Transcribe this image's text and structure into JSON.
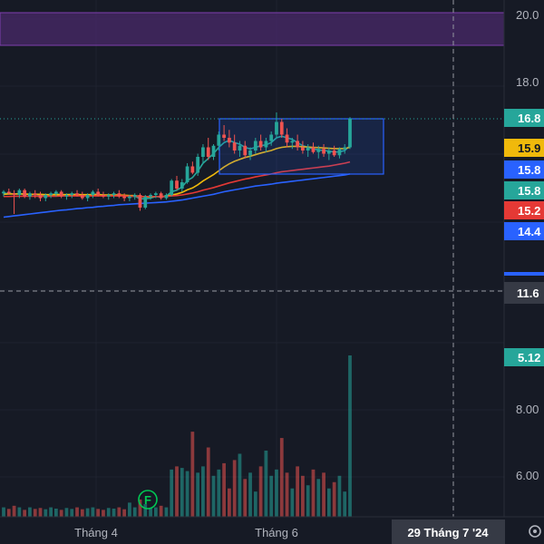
{
  "chart_data": {
    "type": "candlestick",
    "price_axis_labels": [
      "20.0",
      "18.0",
      "16.8",
      "15.9",
      "15.8",
      "15.8",
      "15.2",
      "14.4",
      "11.6",
      "5.12"
    ],
    "volume_axis_labels": [
      "8.00",
      "6.00"
    ],
    "time_labels": [
      "Tháng 4",
      "Tháng 6"
    ],
    "crosshair_time": "29 Tháng 7 '24",
    "crosshair_price": "11.6",
    "volume_last": "5.12",
    "event_marker": "F",
    "candles": [
      {
        "o": 14.45,
        "h": 14.55,
        "l": 14.35,
        "c": 14.5
      },
      {
        "o": 14.5,
        "h": 14.6,
        "l": 14.4,
        "c": 14.45
      },
      {
        "o": 14.45,
        "h": 14.55,
        "l": 13.8,
        "c": 14.4
      },
      {
        "o": 14.4,
        "h": 14.6,
        "l": 14.3,
        "c": 14.55
      },
      {
        "o": 14.55,
        "h": 14.6,
        "l": 14.3,
        "c": 14.35
      },
      {
        "o": 14.35,
        "h": 14.5,
        "l": 14.25,
        "c": 14.45
      },
      {
        "o": 14.45,
        "h": 14.55,
        "l": 14.3,
        "c": 14.4
      },
      {
        "o": 14.4,
        "h": 14.5,
        "l": 14.2,
        "c": 14.3
      },
      {
        "o": 14.3,
        "h": 14.45,
        "l": 14.2,
        "c": 14.4
      },
      {
        "o": 14.4,
        "h": 14.5,
        "l": 14.3,
        "c": 14.45
      },
      {
        "o": 14.45,
        "h": 14.55,
        "l": 14.35,
        "c": 14.5
      },
      {
        "o": 14.5,
        "h": 14.55,
        "l": 14.3,
        "c": 14.35
      },
      {
        "o": 14.35,
        "h": 14.45,
        "l": 14.25,
        "c": 14.4
      },
      {
        "o": 14.4,
        "h": 14.5,
        "l": 14.3,
        "c": 14.45
      },
      {
        "o": 14.45,
        "h": 14.55,
        "l": 14.35,
        "c": 14.4
      },
      {
        "o": 14.4,
        "h": 14.5,
        "l": 14.25,
        "c": 14.3
      },
      {
        "o": 14.3,
        "h": 14.45,
        "l": 14.2,
        "c": 14.4
      },
      {
        "o": 14.4,
        "h": 14.55,
        "l": 14.3,
        "c": 14.5
      },
      {
        "o": 14.5,
        "h": 14.6,
        "l": 14.35,
        "c": 14.4
      },
      {
        "o": 14.4,
        "h": 14.5,
        "l": 14.3,
        "c": 14.35
      },
      {
        "o": 14.35,
        "h": 14.45,
        "l": 14.25,
        "c": 14.4
      },
      {
        "o": 14.4,
        "h": 14.5,
        "l": 14.3,
        "c": 14.45
      },
      {
        "o": 14.45,
        "h": 14.55,
        "l": 14.3,
        "c": 14.35
      },
      {
        "o": 14.35,
        "h": 14.45,
        "l": 14.2,
        "c": 14.3
      },
      {
        "o": 14.3,
        "h": 14.4,
        "l": 14.2,
        "c": 14.35
      },
      {
        "o": 14.35,
        "h": 14.45,
        "l": 14.25,
        "c": 14.4
      },
      {
        "o": 14.4,
        "h": 14.45,
        "l": 13.9,
        "c": 14.0
      },
      {
        "o": 14.0,
        "h": 14.4,
        "l": 13.95,
        "c": 14.35
      },
      {
        "o": 14.35,
        "h": 14.45,
        "l": 14.25,
        "c": 14.4
      },
      {
        "o": 14.4,
        "h": 14.5,
        "l": 14.3,
        "c": 14.45
      },
      {
        "o": 14.45,
        "h": 14.5,
        "l": 14.25,
        "c": 14.3
      },
      {
        "o": 14.3,
        "h": 14.45,
        "l": 14.25,
        "c": 14.4
      },
      {
        "o": 14.4,
        "h": 14.9,
        "l": 14.35,
        "c": 14.85
      },
      {
        "o": 14.85,
        "h": 15.0,
        "l": 14.55,
        "c": 14.6
      },
      {
        "o": 14.6,
        "h": 14.9,
        "l": 14.5,
        "c": 14.8
      },
      {
        "o": 14.8,
        "h": 15.4,
        "l": 14.75,
        "c": 15.3
      },
      {
        "o": 15.3,
        "h": 15.45,
        "l": 15.05,
        "c": 15.1
      },
      {
        "o": 15.1,
        "h": 15.7,
        "l": 15.0,
        "c": 15.6
      },
      {
        "o": 15.6,
        "h": 16.0,
        "l": 15.4,
        "c": 15.9
      },
      {
        "o": 15.9,
        "h": 16.2,
        "l": 15.5,
        "c": 15.6
      },
      {
        "o": 15.6,
        "h": 16.0,
        "l": 15.5,
        "c": 15.95
      },
      {
        "o": 15.95,
        "h": 16.4,
        "l": 15.8,
        "c": 16.3
      },
      {
        "o": 16.3,
        "h": 16.6,
        "l": 16.1,
        "c": 16.2
      },
      {
        "o": 16.2,
        "h": 16.45,
        "l": 15.9,
        "c": 16.05
      },
      {
        "o": 16.05,
        "h": 16.3,
        "l": 15.7,
        "c": 15.8
      },
      {
        "o": 15.8,
        "h": 16.1,
        "l": 15.6,
        "c": 15.95
      },
      {
        "o": 15.95,
        "h": 16.1,
        "l": 15.55,
        "c": 15.65
      },
      {
        "o": 15.65,
        "h": 15.9,
        "l": 15.5,
        "c": 15.8
      },
      {
        "o": 15.8,
        "h": 16.2,
        "l": 15.7,
        "c": 16.1
      },
      {
        "o": 16.1,
        "h": 16.3,
        "l": 15.8,
        "c": 15.9
      },
      {
        "o": 15.9,
        "h": 16.2,
        "l": 15.75,
        "c": 16.1
      },
      {
        "o": 16.1,
        "h": 16.4,
        "l": 15.95,
        "c": 16.3
      },
      {
        "o": 16.3,
        "h": 17.0,
        "l": 16.2,
        "c": 16.7
      },
      {
        "o": 16.7,
        "h": 16.8,
        "l": 16.2,
        "c": 16.3
      },
      {
        "o": 16.3,
        "h": 16.5,
        "l": 15.9,
        "c": 16.05
      },
      {
        "o": 16.05,
        "h": 16.2,
        "l": 15.85,
        "c": 16.1
      },
      {
        "o": 16.1,
        "h": 16.3,
        "l": 15.8,
        "c": 15.9
      },
      {
        "o": 15.9,
        "h": 16.1,
        "l": 15.7,
        "c": 15.8
      },
      {
        "o": 15.8,
        "h": 16.0,
        "l": 15.6,
        "c": 15.9
      },
      {
        "o": 15.9,
        "h": 16.05,
        "l": 15.7,
        "c": 15.75
      },
      {
        "o": 15.75,
        "h": 15.95,
        "l": 15.55,
        "c": 15.85
      },
      {
        "o": 15.85,
        "h": 16.0,
        "l": 15.6,
        "c": 15.7
      },
      {
        "o": 15.7,
        "h": 15.9,
        "l": 15.5,
        "c": 15.8
      },
      {
        "o": 15.8,
        "h": 15.95,
        "l": 15.6,
        "c": 15.65
      },
      {
        "o": 15.65,
        "h": 15.9,
        "l": 15.55,
        "c": 15.85
      },
      {
        "o": 15.85,
        "h": 16.0,
        "l": 15.7,
        "c": 15.9
      },
      {
        "o": 15.9,
        "h": 16.85,
        "l": 15.85,
        "c": 16.8
      }
    ],
    "volume": [
      0.3,
      0.25,
      0.35,
      0.3,
      0.22,
      0.3,
      0.25,
      0.28,
      0.24,
      0.3,
      0.26,
      0.22,
      0.28,
      0.25,
      0.3,
      0.24,
      0.27,
      0.3,
      0.25,
      0.22,
      0.28,
      0.26,
      0.3,
      0.24,
      0.45,
      0.3,
      0.55,
      0.4,
      0.28,
      0.3,
      0.35,
      0.3,
      1.5,
      1.6,
      1.55,
      1.45,
      2.7,
      1.4,
      1.6,
      2.2,
      1.3,
      1.5,
      1.7,
      0.9,
      1.8,
      2.0,
      1.2,
      1.4,
      0.8,
      1.6,
      2.1,
      1.3,
      1.5,
      2.5,
      1.4,
      0.9,
      1.6,
      1.3,
      1.0,
      1.5,
      1.2,
      1.4,
      0.9,
      1.1,
      1.3,
      0.8,
      5.12
    ],
    "ma_series": [
      {
        "color": "#26a69a",
        "values": [
          14.45,
          14.45,
          14.43,
          14.44,
          14.42,
          14.42,
          14.42,
          14.4,
          14.4,
          14.41,
          14.43,
          14.41,
          14.41,
          14.42,
          14.42,
          14.4,
          14.4,
          14.42,
          14.42,
          14.4,
          14.39,
          14.4,
          14.4,
          14.37,
          14.35,
          14.36,
          14.28,
          14.28,
          14.3,
          14.35,
          14.33,
          14.36,
          14.5,
          14.55,
          14.65,
          14.85,
          14.95,
          15.15,
          15.4,
          15.55,
          15.7,
          15.9,
          16.05,
          16.12,
          16.05,
          16.0,
          15.9,
          15.85,
          15.9,
          15.95,
          15.98,
          16.05,
          16.2,
          16.25,
          16.2,
          16.15,
          16.05,
          15.95,
          15.9,
          15.85,
          15.82,
          15.8,
          15.78,
          15.75,
          15.76,
          15.8,
          15.95
        ]
      },
      {
        "color": "#f0b90b",
        "values": [
          14.42,
          14.43,
          14.43,
          14.43,
          14.43,
          14.42,
          14.42,
          14.42,
          14.41,
          14.41,
          14.41,
          14.41,
          14.41,
          14.41,
          14.41,
          14.41,
          14.41,
          14.41,
          14.41,
          14.4,
          14.4,
          14.4,
          14.4,
          14.39,
          14.38,
          14.38,
          14.35,
          14.34,
          14.34,
          14.35,
          14.35,
          14.36,
          14.4,
          14.43,
          14.48,
          14.56,
          14.62,
          14.72,
          14.84,
          14.94,
          15.04,
          15.16,
          15.28,
          15.38,
          15.46,
          15.52,
          15.58,
          15.62,
          15.67,
          15.72,
          15.76,
          15.8,
          15.86,
          15.9,
          15.92,
          15.93,
          15.93,
          15.92,
          15.91,
          15.9,
          15.89,
          15.88,
          15.87,
          15.86,
          15.86,
          15.86,
          15.9
        ]
      },
      {
        "color": "#e53935",
        "values": [
          14.35,
          14.35,
          14.36,
          14.36,
          14.36,
          14.36,
          14.36,
          14.36,
          14.36,
          14.36,
          14.36,
          14.37,
          14.37,
          14.37,
          14.37,
          14.37,
          14.37,
          14.37,
          14.37,
          14.37,
          14.37,
          14.37,
          14.37,
          14.37,
          14.36,
          14.36,
          14.35,
          14.35,
          14.35,
          14.35,
          14.35,
          14.35,
          14.37,
          14.38,
          14.4,
          14.43,
          14.46,
          14.5,
          14.55,
          14.59,
          14.63,
          14.68,
          14.73,
          14.78,
          14.82,
          14.86,
          14.9,
          14.93,
          14.97,
          15.0,
          15.03,
          15.06,
          15.1,
          15.13,
          15.15,
          15.17,
          15.19,
          15.21,
          15.23,
          15.25,
          15.27,
          15.29,
          15.31,
          15.34,
          15.37,
          15.4,
          15.44
        ]
      },
      {
        "color": "#2962ff",
        "values": [
          13.7,
          13.72,
          13.74,
          13.76,
          13.78,
          13.8,
          13.82,
          13.84,
          13.86,
          13.88,
          13.9,
          13.92,
          13.93,
          13.95,
          13.97,
          13.98,
          14.0,
          14.01,
          14.03,
          14.04,
          14.06,
          14.07,
          14.09,
          14.1,
          14.11,
          14.12,
          14.13,
          14.14,
          14.15,
          14.16,
          14.17,
          14.18,
          14.2,
          14.22,
          14.24,
          14.27,
          14.3,
          14.33,
          14.36,
          14.39,
          14.42,
          14.46,
          14.5,
          14.53,
          14.56,
          14.59,
          14.62,
          14.65,
          14.68,
          14.7,
          14.72,
          14.74,
          14.77,
          14.79,
          14.81,
          14.83,
          14.85,
          14.87,
          14.89,
          14.91,
          14.93,
          14.95,
          14.97,
          14.99,
          15.01,
          15.03,
          15.06
        ]
      }
    ],
    "colors": {
      "up": "#26a69a",
      "down": "#ef5350",
      "background": "#161a25",
      "grid": "#1f2330"
    }
  }
}
